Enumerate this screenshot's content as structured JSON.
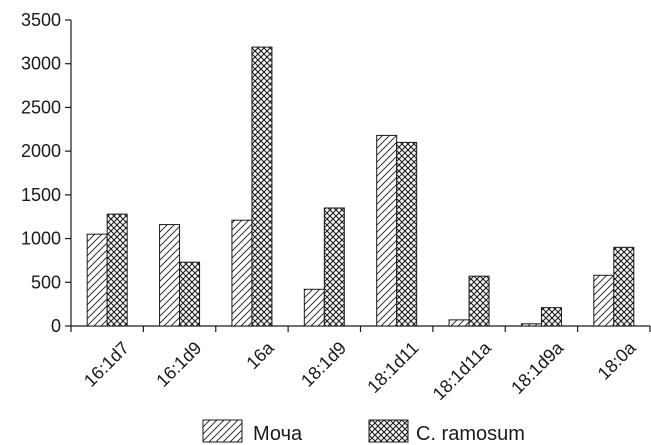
{
  "chart_data": {
    "type": "bar",
    "title": "",
    "xlabel": "",
    "ylabel": "",
    "ylim": [
      0,
      3500
    ],
    "yticks": [
      0,
      500,
      1000,
      1500,
      2000,
      2500,
      3000,
      3500
    ],
    "grid": false,
    "legend_position": "bottom",
    "categories": [
      "16:1d7",
      "16:1d9",
      "16a",
      "18:1d9",
      "18:1d11",
      "18:1d11a",
      "18:1d9a",
      "18:0a"
    ],
    "series": [
      {
        "name": "Моча",
        "pattern": "diagonal-hatch",
        "values": [
          1050,
          1160,
          1210,
          420,
          2180,
          70,
          25,
          580
        ]
      },
      {
        "name": "C. ramosum",
        "pattern": "crosshatch",
        "values": [
          1280,
          730,
          3190,
          1350,
          2100,
          570,
          210,
          900
        ]
      }
    ],
    "colors": {
      "bar_stroke": "#1a1a1a",
      "axis": "#1a1a1a",
      "fill": "#ffffff"
    }
  }
}
